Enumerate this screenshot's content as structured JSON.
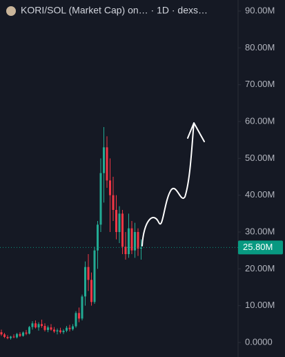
{
  "chart_data": {
    "type": "candlestick",
    "title": "KORI/SOL (Market Cap) on… · 1D · dexs…",
    "up_color": "#22ab94",
    "down_color": "#f23645",
    "open": [
      2.8,
      2.2,
      1.5,
      1.2,
      1.6,
      1.4,
      2.3,
      1.8,
      2.7,
      2.4,
      4.2,
      5.2,
      4.1,
      5.0,
      4.5,
      3.4,
      4.1,
      3.5,
      3.0,
      3.3,
      2.8,
      3.2,
      4.0,
      3.6,
      4.4,
      8.0,
      6.5,
      12.5,
      20.5,
      17.0,
      11.0,
      25.0,
      32.0,
      46.0,
      53.0,
      44.0,
      40.0,
      36.0,
      30.0,
      35.0,
      26.0,
      24.0,
      31.0,
      25.0,
      30.0,
      25.5
    ],
    "high": [
      3.5,
      2.6,
      2.0,
      1.8,
      2.2,
      2.6,
      2.8,
      3.0,
      3.4,
      4.5,
      5.8,
      6.0,
      5.5,
      6.2,
      5.2,
      4.6,
      5.0,
      4.2,
      3.8,
      4.0,
      3.6,
      4.5,
      4.8,
      5.0,
      8.5,
      9.5,
      13.0,
      22.0,
      24.0,
      19.0,
      26.0,
      33.0,
      50.0,
      58.5,
      56.0,
      50.0,
      45.0,
      40.0,
      37.0,
      36.0,
      30.0,
      35.0,
      33.0,
      32.5,
      31.0,
      28.0
    ],
    "low": [
      1.8,
      1.2,
      0.9,
      0.8,
      1.2,
      1.1,
      1.5,
      1.6,
      2.0,
      2.2,
      3.5,
      3.8,
      3.2,
      4.0,
      3.0,
      2.8,
      3.2,
      2.6,
      2.2,
      2.4,
      2.3,
      2.8,
      3.0,
      3.2,
      4.0,
      5.5,
      6.0,
      10.0,
      14.0,
      10.0,
      10.5,
      20.0,
      30.0,
      38.0,
      42.0,
      30.0,
      33.0,
      28.0,
      27.0,
      24.0,
      22.5,
      23.0,
      24.0,
      23.0,
      23.5,
      22.5
    ],
    "close": [
      2.2,
      1.5,
      1.2,
      1.6,
      1.4,
      2.3,
      1.8,
      2.7,
      2.4,
      4.2,
      5.2,
      4.1,
      5.0,
      4.5,
      3.4,
      4.1,
      3.5,
      3.0,
      3.3,
      2.8,
      3.2,
      4.0,
      3.6,
      4.4,
      8.0,
      6.5,
      12.5,
      20.5,
      17.0,
      11.0,
      25.0,
      32.0,
      46.0,
      53.0,
      44.0,
      40.0,
      36.0,
      30.0,
      35.0,
      26.0,
      24.0,
      31.0,
      25.0,
      30.0,
      25.5,
      25.8
    ],
    "ylim": [
      0,
      90
    ],
    "yticks": [
      {
        "value": 0,
        "label": "0.0000"
      },
      {
        "value": 10,
        "label": "10.00M"
      },
      {
        "value": 20,
        "label": "20.00M"
      },
      {
        "value": 30,
        "label": "30.00M"
      },
      {
        "value": 40,
        "label": "40.00M"
      },
      {
        "value": 50,
        "label": "50.00M"
      },
      {
        "value": 60,
        "label": "60.00M"
      },
      {
        "value": 70,
        "label": "70.00M"
      },
      {
        "value": 80,
        "label": "80.00M"
      },
      {
        "value": 90,
        "label": "90.00M"
      }
    ],
    "last_price": {
      "value": 25.8,
      "label": "25.80M",
      "color": "#089981"
    }
  }
}
